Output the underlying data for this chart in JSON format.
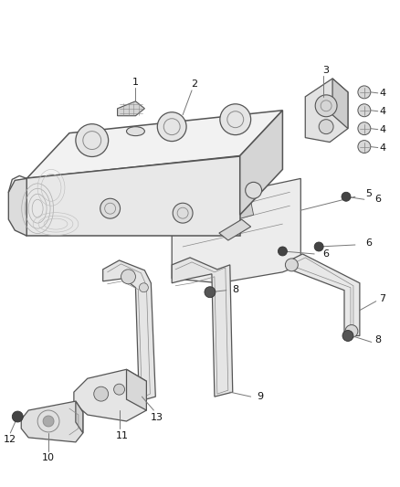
{
  "bg_color": "#ffffff",
  "lc": "#555555",
  "dc": "#888888",
  "fig_width": 4.38,
  "fig_height": 5.33,
  "dpi": 100
}
